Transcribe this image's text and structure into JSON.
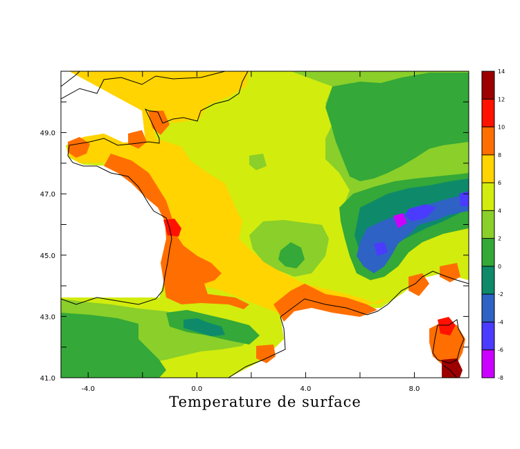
{
  "chart_data": {
    "type": "heatmap",
    "title": "Temperature de surface",
    "xlabel": "",
    "ylabel": "",
    "xlim": [
      -5.0,
      10.0
    ],
    "ylim": [
      41.0,
      51.0
    ],
    "x_ticks": [
      -4.0,
      0.0,
      4.0,
      8.0
    ],
    "x_tick_labels": [
      "-4.0",
      "0.0",
      "4.0",
      "8.0"
    ],
    "x_minor_ticks": [
      -2.0,
      2.0,
      6.0
    ],
    "y_ticks": [
      41.0,
      43.0,
      45.0,
      47.0,
      49.0
    ],
    "y_tick_labels": [
      "41.0",
      "43.0",
      "45.0",
      "47.0",
      "49.0"
    ],
    "y_minor_ticks": [
      42.0,
      44.0,
      46.0,
      48.0,
      50.0
    ],
    "colorbar": {
      "levels": [
        -8,
        -6,
        -4,
        -2,
        0,
        2,
        4,
        6,
        8,
        10,
        12,
        14
      ],
      "labels": [
        "-8",
        "-6",
        "-4",
        "-2",
        "0",
        "2",
        "4",
        "6",
        "8",
        "10",
        "12",
        "14"
      ],
      "colors": [
        "#cc00ff",
        "#4b3bff",
        "#2e62c4",
        "#0e8a6b",
        "#34a838",
        "#8acf2a",
        "#d2ec0e",
        "#ffd400",
        "#ff6e00",
        "#ff1200",
        "#9c0000"
      ]
    },
    "regions": [
      {
        "lat": 50.0,
        "lon": -1.5,
        "level": 6
      },
      {
        "lat": 47.5,
        "lon": -2.0,
        "level": 8
      },
      {
        "lat": 45.0,
        "lon": -0.5,
        "level": 6
      },
      {
        "lat": 43.0,
        "lon": -2.5,
        "level": 4
      },
      {
        "lat": 42.0,
        "lon": -3.5,
        "level": 2
      },
      {
        "lat": 49.0,
        "lon": 2.0,
        "level": 4
      },
      {
        "lat": 45.0,
        "lon": 3.0,
        "level": 2
      },
      {
        "lat": 48.0,
        "lon": 6.5,
        "level": 2
      },
      {
        "lat": 46.5,
        "lon": 7.5,
        "level": 0
      },
      {
        "lat": 45.8,
        "lon": 7.0,
        "level": -4
      },
      {
        "lat": 45.5,
        "lon": 7.4,
        "level": -8
      },
      {
        "lat": 44.0,
        "lon": 5.0,
        "level": 8
      },
      {
        "lat": 42.5,
        "lon": 9.3,
        "level": 8
      },
      {
        "lat": 42.7,
        "lon": 9.2,
        "level": 10
      },
      {
        "lat": 41.3,
        "lon": 9.4,
        "level": 12
      }
    ]
  }
}
